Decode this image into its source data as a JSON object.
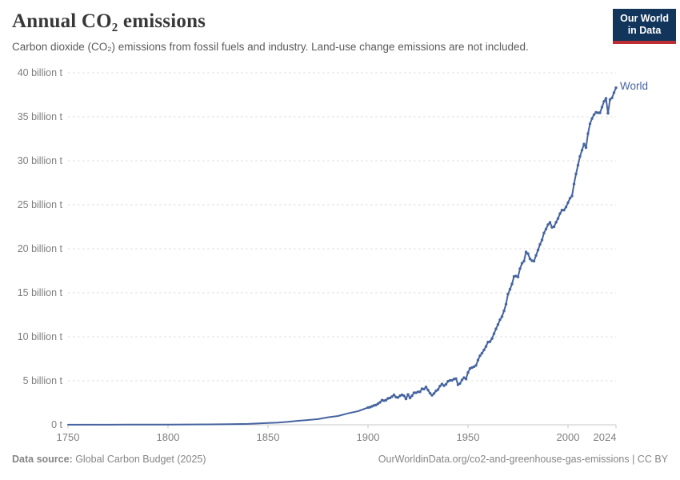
{
  "header": {
    "logo": {
      "line1": "Our World",
      "line2": "in Data"
    }
  },
  "chart_data": {
    "type": "line",
    "title": "Annual CO₂ emissions",
    "subtitle": "Carbon dioxide (CO₂) emissions from fossil fuels and industry. Land-use change emissions are not included.",
    "xlabel": "",
    "ylabel": "",
    "xlim": [
      1750,
      2024
    ],
    "ylim": [
      0,
      40
    ],
    "grid": "horizontal-dashed",
    "legend_position": "end-of-line",
    "y_ticks": [
      {
        "value": 0,
        "label": "0 t"
      },
      {
        "value": 5,
        "label": "5 billion t"
      },
      {
        "value": 10,
        "label": "10 billion t"
      },
      {
        "value": 15,
        "label": "15 billion t"
      },
      {
        "value": 20,
        "label": "20 billion t"
      },
      {
        "value": 25,
        "label": "25 billion t"
      },
      {
        "value": 30,
        "label": "30 billion t"
      },
      {
        "value": 35,
        "label": "35 billion t"
      },
      {
        "value": 40,
        "label": "40 billion t"
      }
    ],
    "x_ticks": [
      {
        "year": 1750,
        "label": "1750"
      },
      {
        "year": 1800,
        "label": "1800"
      },
      {
        "year": 1850,
        "label": "1850"
      },
      {
        "year": 1900,
        "label": "1900"
      },
      {
        "year": 1950,
        "label": "1950"
      },
      {
        "year": 2000,
        "label": "2000"
      },
      {
        "year": 2024,
        "label": "2024"
      }
    ],
    "series": [
      {
        "name": "World",
        "color": "#4664a0",
        "unit": "billion t",
        "points": [
          [
            1750,
            0.009
          ],
          [
            1760,
            0.011
          ],
          [
            1770,
            0.013
          ],
          [
            1780,
            0.016
          ],
          [
            1790,
            0.02
          ],
          [
            1800,
            0.03
          ],
          [
            1810,
            0.04
          ],
          [
            1820,
            0.05
          ],
          [
            1830,
            0.07
          ],
          [
            1840,
            0.1
          ],
          [
            1850,
            0.2
          ],
          [
            1855,
            0.25
          ],
          [
            1860,
            0.34
          ],
          [
            1865,
            0.45
          ],
          [
            1870,
            0.55
          ],
          [
            1875,
            0.65
          ],
          [
            1880,
            0.85
          ],
          [
            1885,
            1.0
          ],
          [
            1890,
            1.3
          ],
          [
            1895,
            1.55
          ],
          [
            1900,
            1.96
          ],
          [
            1901,
            2.0
          ],
          [
            1902,
            2.1
          ],
          [
            1903,
            2.2
          ],
          [
            1904,
            2.25
          ],
          [
            1905,
            2.4
          ],
          [
            1906,
            2.55
          ],
          [
            1907,
            2.8
          ],
          [
            1908,
            2.75
          ],
          [
            1909,
            2.8
          ],
          [
            1910,
            3.0
          ],
          [
            1911,
            3.05
          ],
          [
            1912,
            3.2
          ],
          [
            1913,
            3.4
          ],
          [
            1914,
            3.15
          ],
          [
            1915,
            3.1
          ],
          [
            1916,
            3.3
          ],
          [
            1917,
            3.4
          ],
          [
            1918,
            3.3
          ],
          [
            1919,
            2.95
          ],
          [
            1920,
            3.45
          ],
          [
            1921,
            3.05
          ],
          [
            1922,
            3.3
          ],
          [
            1923,
            3.65
          ],
          [
            1924,
            3.65
          ],
          [
            1925,
            3.75
          ],
          [
            1926,
            3.75
          ],
          [
            1927,
            4.1
          ],
          [
            1928,
            4.05
          ],
          [
            1929,
            4.3
          ],
          [
            1930,
            3.95
          ],
          [
            1931,
            3.6
          ],
          [
            1932,
            3.35
          ],
          [
            1933,
            3.55
          ],
          [
            1934,
            3.85
          ],
          [
            1935,
            4.0
          ],
          [
            1936,
            4.4
          ],
          [
            1937,
            4.65
          ],
          [
            1938,
            4.45
          ],
          [
            1939,
            4.6
          ],
          [
            1940,
            4.95
          ],
          [
            1941,
            5.05
          ],
          [
            1942,
            5.05
          ],
          [
            1943,
            5.2
          ],
          [
            1944,
            5.25
          ],
          [
            1945,
            4.55
          ],
          [
            1946,
            4.7
          ],
          [
            1947,
            5.1
          ],
          [
            1948,
            5.35
          ],
          [
            1949,
            5.2
          ],
          [
            1950,
            5.95
          ],
          [
            1951,
            6.4
          ],
          [
            1952,
            6.5
          ],
          [
            1953,
            6.6
          ],
          [
            1954,
            6.75
          ],
          [
            1955,
            7.35
          ],
          [
            1956,
            7.85
          ],
          [
            1957,
            8.15
          ],
          [
            1958,
            8.5
          ],
          [
            1959,
            8.9
          ],
          [
            1960,
            9.4
          ],
          [
            1961,
            9.45
          ],
          [
            1962,
            9.8
          ],
          [
            1963,
            10.35
          ],
          [
            1964,
            10.9
          ],
          [
            1965,
            11.4
          ],
          [
            1966,
            11.95
          ],
          [
            1967,
            12.3
          ],
          [
            1968,
            12.95
          ],
          [
            1969,
            13.7
          ],
          [
            1970,
            14.85
          ],
          [
            1971,
            15.4
          ],
          [
            1972,
            16.0
          ],
          [
            1973,
            16.85
          ],
          [
            1974,
            16.9
          ],
          [
            1975,
            16.8
          ],
          [
            1976,
            17.75
          ],
          [
            1977,
            18.35
          ],
          [
            1978,
            18.6
          ],
          [
            1979,
            19.65
          ],
          [
            1980,
            19.45
          ],
          [
            1981,
            18.85
          ],
          [
            1982,
            18.65
          ],
          [
            1983,
            18.6
          ],
          [
            1984,
            19.25
          ],
          [
            1985,
            19.85
          ],
          [
            1986,
            20.5
          ],
          [
            1987,
            21.0
          ],
          [
            1988,
            21.8
          ],
          [
            1989,
            22.25
          ],
          [
            1990,
            22.75
          ],
          [
            1991,
            23.0
          ],
          [
            1992,
            22.45
          ],
          [
            1993,
            22.5
          ],
          [
            1994,
            23.0
          ],
          [
            1995,
            23.45
          ],
          [
            1996,
            24.0
          ],
          [
            1997,
            24.4
          ],
          [
            1998,
            24.4
          ],
          [
            1999,
            24.75
          ],
          [
            2000,
            25.25
          ],
          [
            2001,
            25.75
          ],
          [
            2002,
            26.0
          ],
          [
            2003,
            27.35
          ],
          [
            2004,
            28.5
          ],
          [
            2005,
            29.5
          ],
          [
            2006,
            30.5
          ],
          [
            2007,
            31.2
          ],
          [
            2008,
            31.9
          ],
          [
            2009,
            31.5
          ],
          [
            2010,
            33.1
          ],
          [
            2011,
            34.2
          ],
          [
            2012,
            34.8
          ],
          [
            2013,
            35.25
          ],
          [
            2014,
            35.5
          ],
          [
            2015,
            35.45
          ],
          [
            2016,
            35.45
          ],
          [
            2017,
            36.1
          ],
          [
            2018,
            36.75
          ],
          [
            2019,
            37.1
          ],
          [
            2020,
            35.4
          ],
          [
            2021,
            36.95
          ],
          [
            2022,
            37.15
          ],
          [
            2023,
            37.75
          ],
          [
            2024,
            38.3
          ]
        ]
      }
    ]
  },
  "footer": {
    "source_label": "Data source:",
    "source_value": " Global Carbon Budget (2025)",
    "credit": "OurWorldinData.org/co2-and-greenhouse-gas-emissions | CC BY"
  },
  "colors": {
    "line": "#4664a0",
    "logo_bg": "#12355c",
    "logo_accent": "#bc2e31",
    "gridline": "#dcdcdc",
    "axis": "#c9c9c9"
  }
}
